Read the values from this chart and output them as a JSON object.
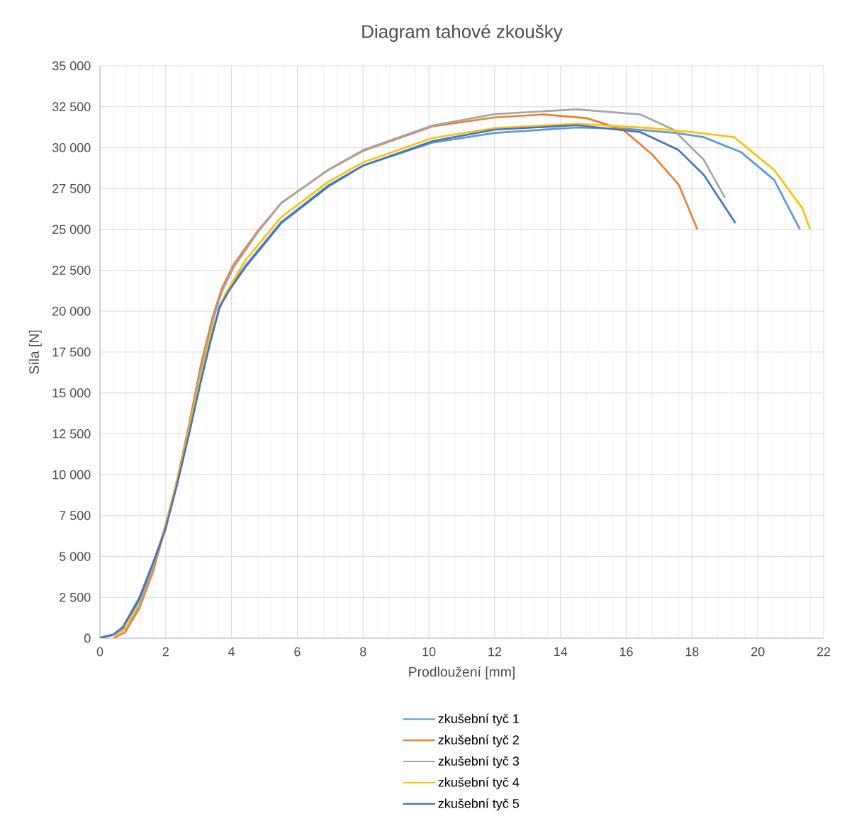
{
  "chart_data": {
    "type": "line",
    "title": "Diagram tahové zkoušky",
    "xlabel": "Prodloužení [mm]",
    "ylabel": "Síla [N]",
    "xlim": [
      0,
      22
    ],
    "xticks": [
      0,
      2,
      4,
      6,
      8,
      10,
      12,
      14,
      16,
      18,
      20,
      22
    ],
    "ylim": [
      0,
      35000
    ],
    "yticks": [
      0,
      {
        "value": 2500,
        "label": "2 500"
      },
      {
        "value": 5000,
        "label": "5 000"
      },
      {
        "value": 7500,
        "label": "7 500"
      },
      {
        "value": 10000,
        "label": "10 000"
      },
      {
        "value": 12500,
        "label": "12 500"
      },
      {
        "value": 15000,
        "label": "15 000"
      },
      {
        "value": 17500,
        "label": "17 500"
      },
      {
        "value": 20000,
        "label": "20 000"
      },
      {
        "value": 22500,
        "label": "22 500"
      },
      {
        "value": 25000,
        "label": "25 000"
      },
      {
        "value": 27500,
        "label": "27 500"
      },
      {
        "value": 30000,
        "label": "30 000"
      },
      {
        "value": 32500,
        "label": "32 500"
      },
      {
        "value": 35000,
        "label": "35 000"
      }
    ],
    "grid": true,
    "legend": "bottom",
    "line_style": "solid",
    "series": [
      {
        "name": "zkušební tyč 1",
        "color": "#5b9bd5",
        "x": [
          0,
          0.4,
          0.7,
          1.2,
          1.63,
          2,
          2.35,
          2.71,
          3.07,
          3.35,
          3.64,
          4.07,
          4.43,
          5.51,
          6.94,
          8,
          10.1,
          12,
          14.5,
          16,
          17.5,
          18.36,
          19.5,
          20.5,
          21.28
        ],
        "values": [
          50,
          200,
          700,
          2500,
          4700,
          6800,
          9500,
          12600,
          15800,
          18100,
          20300,
          21800,
          22800,
          25450,
          27700,
          28900,
          30300,
          30900,
          31230,
          31150,
          30900,
          30640,
          29710,
          28020,
          25000
        ]
      },
      {
        "name": "zkušební tyč 2",
        "color": "#ed7d31",
        "x": [
          0.4,
          0.77,
          1.2,
          1.63,
          1.99,
          2.35,
          2.71,
          3.07,
          3.43,
          3.71,
          4.07,
          4.79,
          5.51,
          6.94,
          8,
          10.1,
          12,
          13.5,
          14.8,
          15.9,
          16.8,
          17.6,
          18.16
        ],
        "values": [
          0,
          370,
          1830,
          4170,
          6800,
          9720,
          13080,
          16740,
          19670,
          21420,
          22870,
          24880,
          26610,
          28630,
          29800,
          31300,
          31850,
          32030,
          31800,
          31100,
          29560,
          27720,
          25000
        ]
      },
      {
        "name": "zkušební tyč 3",
        "color": "#a5a5a5",
        "x": [
          0,
          0.5,
          0.8,
          1.2,
          1.63,
          2,
          2.35,
          2.71,
          3.07,
          3.43,
          3.71,
          4.07,
          4.79,
          5.51,
          6.94,
          8,
          10.1,
          12,
          14.5,
          16.43,
          17.43,
          18.36,
          19.0
        ],
        "values": [
          50,
          250,
          600,
          2000,
          4400,
          7000,
          9600,
          12900,
          16400,
          19400,
          21200,
          22700,
          24800,
          26600,
          28650,
          29850,
          31350,
          32050,
          32340,
          32030,
          31100,
          29250,
          26940
        ]
      },
      {
        "name": "zkušební tyč 4",
        "color": "#ffc000",
        "x": [
          0,
          0.5,
          0.8,
          1.2,
          1.63,
          2,
          2.35,
          2.71,
          3.07,
          3.43,
          3.79,
          4.43,
          5.51,
          6.94,
          8,
          10.1,
          12,
          14.5,
          16.74,
          18,
          19.28,
          20.5,
          21.35,
          21.59
        ],
        "values": [
          50,
          250,
          700,
          2300,
          4600,
          6900,
          9600,
          12800,
          16000,
          19000,
          20980,
          23140,
          25740,
          27910,
          29100,
          30580,
          31200,
          31460,
          31190,
          30950,
          30640,
          28630,
          26310,
          25000
        ]
      },
      {
        "name": "zkušební tyč 5",
        "color": "#4472c4",
        "x": [
          0,
          0.41,
          0.7,
          1.2,
          1.63,
          1.99,
          2.35,
          2.71,
          3.07,
          3.35,
          3.64,
          3.93,
          4.43,
          5.51,
          6.94,
          8,
          10.1,
          12,
          14.5,
          16.43,
          17.58,
          18.36,
          19.32
        ],
        "values": [
          0,
          220,
          660,
          2400,
          4660,
          6650,
          9430,
          12500,
          15720,
          18060,
          20260,
          21270,
          22710,
          25380,
          27620,
          28900,
          30390,
          31100,
          31370,
          30950,
          29870,
          28330,
          25380
        ]
      }
    ]
  }
}
